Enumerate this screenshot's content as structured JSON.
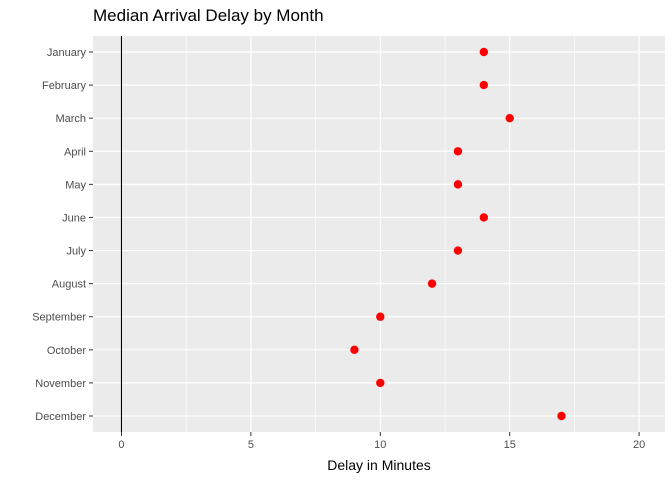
{
  "chart_data": {
    "type": "scatter",
    "title": "Median Arrival Delay by Month",
    "xlabel": "Delay in Minutes",
    "ylabel": "",
    "categories": [
      "January",
      "February",
      "March",
      "April",
      "May",
      "June",
      "July",
      "August",
      "September",
      "October",
      "November",
      "December"
    ],
    "values": [
      14,
      14,
      15,
      13,
      13,
      14,
      13,
      12,
      10,
      9,
      10,
      17
    ],
    "xlim": [
      -1.1,
      21
    ],
    "xticks": [
      0,
      5,
      10,
      15,
      20
    ],
    "reference_line_x": 0,
    "grid": true,
    "panel_background": "#ebebeb",
    "grid_color": "#ffffff",
    "point_color": "#ff0000",
    "reference_line_color": "#000000"
  }
}
